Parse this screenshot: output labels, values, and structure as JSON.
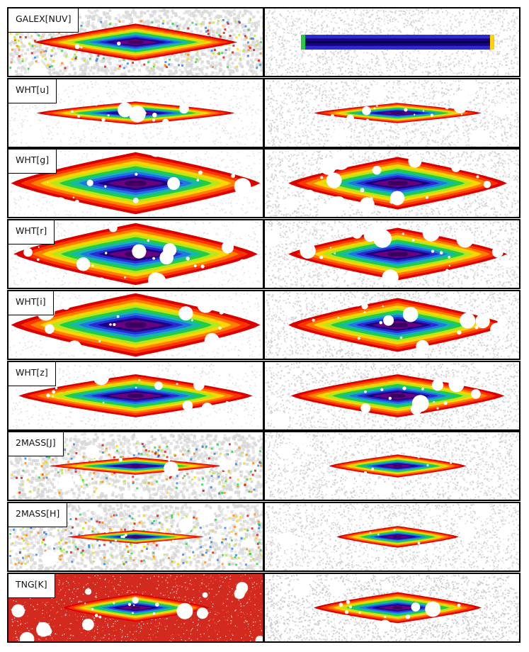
{
  "rows": [
    {
      "band": "GALEX[NUV]",
      "obs": {
        "style": "noisy",
        "w": 0.8,
        "h": 0.55,
        "bg": 0.55,
        "holes": 0.2,
        "cores": 3,
        "redbg": 0
      },
      "model": {
        "style": "thin",
        "w": 0.76,
        "h": 0.22,
        "bg": 0.75,
        "holes": 0.0,
        "cores": 1
      }
    },
    {
      "band": "WHT[u]",
      "obs": {
        "style": "smooth",
        "w": 0.78,
        "h": 0.34,
        "bg": 0.3,
        "holes": 1.0,
        "cores": 3,
        "redbg": 0
      },
      "model": {
        "style": "smooth",
        "w": 0.66,
        "h": 0.3,
        "bg": 0.75,
        "holes": 1.0,
        "cores": 3
      }
    },
    {
      "band": "WHT[g]",
      "obs": {
        "style": "smooth",
        "w": 0.98,
        "h": 0.92,
        "bg": 0.25,
        "holes": 1.0,
        "cores": 4,
        "redbg": 0
      },
      "model": {
        "style": "smooth",
        "w": 0.86,
        "h": 0.78,
        "bg": 0.75,
        "holes": 1.0,
        "cores": 4
      }
    },
    {
      "band": "WHT[r]",
      "obs": {
        "style": "smooth",
        "w": 0.96,
        "h": 0.92,
        "bg": 0.25,
        "holes": 1.0,
        "cores": 4,
        "redbg": 0
      },
      "model": {
        "style": "smooth",
        "w": 0.86,
        "h": 0.78,
        "bg": 0.75,
        "holes": 1.0,
        "cores": 4
      }
    },
    {
      "band": "WHT[i]",
      "obs": {
        "style": "smooth",
        "w": 0.98,
        "h": 0.94,
        "bg": 0.25,
        "holes": 1.0,
        "cores": 4,
        "redbg": 0
      },
      "model": {
        "style": "smooth",
        "w": 0.86,
        "h": 0.8,
        "bg": 0.75,
        "holes": 1.0,
        "cores": 4
      }
    },
    {
      "band": "WHT[z]",
      "obs": {
        "style": "smooth",
        "w": 0.92,
        "h": 0.64,
        "bg": 0.3,
        "holes": 1.0,
        "cores": 3,
        "redbg": 0
      },
      "model": {
        "style": "smooth",
        "w": 0.84,
        "h": 0.64,
        "bg": 0.75,
        "holes": 1.0,
        "cores": 3
      }
    },
    {
      "band": "2MASS[J]",
      "obs": {
        "style": "noisy",
        "w": 0.68,
        "h": 0.26,
        "bg": 0.55,
        "holes": 0.6,
        "cores": 2,
        "redbg": 0
      },
      "model": {
        "style": "smooth",
        "w": 0.54,
        "h": 0.34,
        "bg": 0.75,
        "holes": 0.5,
        "cores": 2
      }
    },
    {
      "band": "2MASS[H]",
      "obs": {
        "style": "noisy",
        "w": 0.54,
        "h": 0.2,
        "bg": 0.55,
        "holes": 0.6,
        "cores": 2,
        "redbg": 0
      },
      "model": {
        "style": "smooth",
        "w": 0.48,
        "h": 0.32,
        "bg": 0.75,
        "holes": 0.5,
        "cores": 2
      }
    },
    {
      "band": "TNG[K]",
      "obs": {
        "style": "smooth",
        "w": 0.58,
        "h": 0.42,
        "bg": 0.0,
        "holes": 1.0,
        "cores": 2,
        "redbg": 1
      },
      "model": {
        "style": "smooth",
        "w": 0.66,
        "h": 0.46,
        "bg": 0.95,
        "holes": 1.0,
        "cores": 2
      }
    }
  ],
  "palette": [
    "#d90000",
    "#ff3300",
    "#ff8000",
    "#ffd400",
    "#b8e61a",
    "#22cc44",
    "#18b8a8",
    "#1e78e0",
    "#2a2ad4",
    "#1a0080",
    "#6b0080"
  ]
}
